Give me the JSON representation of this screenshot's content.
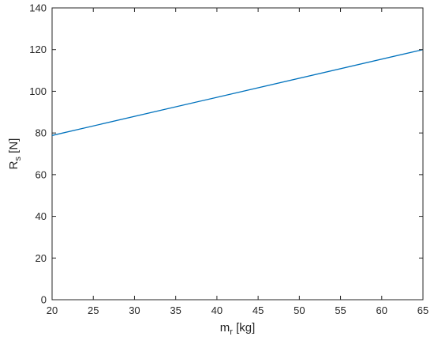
{
  "chart_data": {
    "type": "line",
    "title": "",
    "xlabel": {
      "base": "m",
      "sub": "r",
      "rest": " [kg]"
    },
    "ylabel": {
      "base": "R",
      "sub": "s",
      "rest": " [N]"
    },
    "xlim": [
      20,
      65
    ],
    "ylim": [
      0,
      140
    ],
    "xticks": [
      20,
      25,
      30,
      35,
      40,
      45,
      50,
      55,
      60,
      65
    ],
    "yticks": [
      0,
      20,
      40,
      60,
      80,
      100,
      120,
      140
    ],
    "grid": false,
    "series": [
      {
        "x": [
          20,
          65
        ],
        "y": [
          78.8,
          120.0
        ],
        "color": "#0072BD"
      }
    ]
  }
}
